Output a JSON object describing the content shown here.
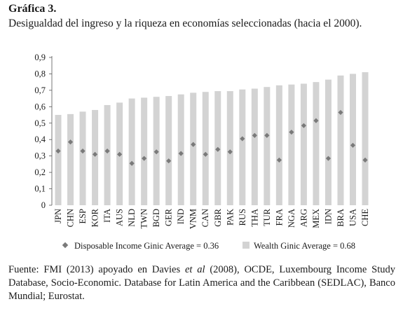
{
  "figure": {
    "title": "Gráfica 3.",
    "subtitle": "Desigualdad del ingreso y la riqueza en economías seleccionadas (hacia el 2000)."
  },
  "source": {
    "prefix": "Fuente: FMI (2013) apoyado en Davies ",
    "italic": "et al",
    "suffix": " (2008), OCDE, Luxembourg Income Study Database, Socio-Economic. Database for Latin America and the Caribbean (SEDLAC), Banco Mundial; Eurostat."
  },
  "colors": {
    "bar": "#d3d3d3",
    "marker": "#7a7a7a",
    "axis": "#555555"
  },
  "chart_data": {
    "type": "bar",
    "categories": [
      "JPN",
      "CHN",
      "ESP",
      "KOR",
      "ITA",
      "AUS",
      "NLD",
      "TWN",
      "BGD",
      "GER",
      "IND",
      "VNM",
      "CAN",
      "GBR",
      "PAK",
      "RUS",
      "THA",
      "TUR",
      "FRA",
      "NGA",
      "ARG",
      "MEX",
      "IDN",
      "BRA",
      "USA",
      "CHE"
    ],
    "ylim": [
      0,
      0.9
    ],
    "yticks": [
      "0",
      "0,1",
      "0,2",
      "0,3",
      "0,4",
      "0,5",
      "0,6",
      "0,7",
      "0,8",
      "0,9"
    ],
    "grid": false,
    "legend_position": "bottom",
    "series": [
      {
        "name": "Wealth Ginic Average = 0.68",
        "kind": "bar",
        "values": [
          0.55,
          0.555,
          0.57,
          0.58,
          0.61,
          0.625,
          0.65,
          0.655,
          0.66,
          0.665,
          0.675,
          0.685,
          0.69,
          0.695,
          0.695,
          0.705,
          0.71,
          0.72,
          0.73,
          0.735,
          0.74,
          0.75,
          0.765,
          0.79,
          0.8,
          0.81
        ]
      },
      {
        "name": "Disposable Income Ginic Average = 0.36",
        "kind": "marker",
        "values": [
          0.33,
          0.385,
          0.33,
          0.31,
          0.33,
          0.31,
          0.255,
          0.285,
          0.325,
          0.27,
          0.315,
          0.37,
          0.31,
          0.34,
          0.325,
          0.405,
          0.425,
          0.425,
          0.275,
          0.445,
          0.485,
          0.515,
          0.285,
          0.565,
          0.365,
          0.275
        ]
      }
    ]
  }
}
